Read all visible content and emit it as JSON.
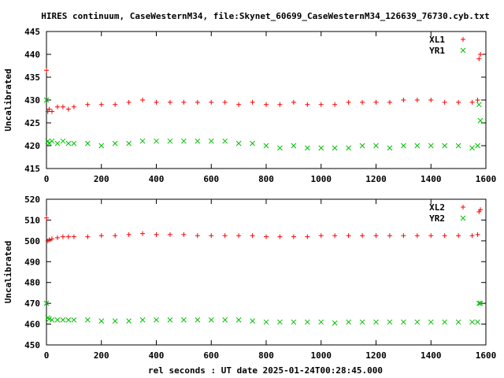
{
  "chart_data": {
    "title": "HIRES continuum, CaseWesternM34, file:Skynet_60699_CaseWesternM34_126639_76730.cyb.txt",
    "xlabel": "rel seconds : UT date 2025-01-24T00:28:45.000",
    "panels": [
      {
        "type": "scatter",
        "ylabel": "Uncalibrated",
        "xlim": [
          0,
          1600
        ],
        "ylim": [
          415,
          445
        ],
        "xticks": [
          0,
          200,
          400,
          600,
          800,
          1000,
          1200,
          1400,
          1600
        ],
        "yticks": [
          415,
          420,
          425,
          430,
          435,
          440,
          445
        ],
        "series": [
          {
            "name": "XL1",
            "color": "#ff0000",
            "marker": "plus",
            "x": [
              0,
              5,
              10,
              20,
              40,
              60,
              80,
              100,
              150,
              200,
              250,
              300,
              350,
              400,
              450,
              500,
              550,
              600,
              650,
              700,
              750,
              800,
              850,
              900,
              950,
              1000,
              1050,
              1100,
              1150,
              1200,
              1250,
              1300,
              1350,
              1400,
              1450,
              1500,
              1550,
              1570,
              1575,
              1580
            ],
            "y": [
              436.5,
              427.5,
              428,
              427.5,
              428.5,
              428.5,
              428,
              428.5,
              429,
              429,
              429,
              429.5,
              430,
              429.5,
              429.5,
              429.5,
              429.5,
              429.5,
              429.5,
              429,
              429.5,
              429,
              429,
              429.5,
              429,
              429,
              429,
              429.5,
              429.5,
              429.5,
              429.5,
              430,
              430,
              430,
              429.5,
              429.5,
              429.5,
              430,
              439,
              440
            ]
          },
          {
            "name": "YR1",
            "color": "#00c000",
            "marker": "cross",
            "x": [
              0,
              5,
              10,
              20,
              40,
              60,
              80,
              100,
              150,
              200,
              250,
              300,
              350,
              400,
              450,
              500,
              550,
              600,
              650,
              700,
              750,
              800,
              850,
              900,
              950,
              1000,
              1050,
              1100,
              1150,
              1200,
              1250,
              1300,
              1350,
              1400,
              1450,
              1500,
              1550,
              1570,
              1575,
              1580
            ],
            "y": [
              430,
              421,
              420.5,
              421,
              420.5,
              421,
              420.5,
              420.5,
              420.5,
              420,
              420.5,
              420.5,
              421,
              421,
              421,
              421,
              421,
              421,
              421,
              420.5,
              420.5,
              420,
              419.5,
              420,
              419.5,
              419.5,
              419.5,
              419.5,
              420,
              420,
              419.5,
              420,
              420,
              420,
              420,
              420,
              419.5,
              420,
              429,
              425.5
            ]
          }
        ]
      },
      {
        "type": "scatter",
        "ylabel": "Uncalibrated",
        "xlim": [
          0,
          1600
        ],
        "ylim": [
          450,
          520
        ],
        "xticks": [
          0,
          200,
          400,
          600,
          800,
          1000,
          1200,
          1400,
          1600
        ],
        "yticks": [
          450,
          460,
          470,
          480,
          490,
          500,
          510,
          520
        ],
        "series": [
          {
            "name": "XL2",
            "color": "#ff0000",
            "marker": "plus",
            "x": [
              0,
              5,
              10,
              20,
              40,
              60,
              80,
              100,
              150,
              200,
              250,
              300,
              350,
              400,
              450,
              500,
              550,
              600,
              650,
              700,
              750,
              800,
              850,
              900,
              950,
              1000,
              1050,
              1100,
              1150,
              1200,
              1250,
              1300,
              1350,
              1400,
              1450,
              1500,
              1550,
              1570,
              1575,
              1580
            ],
            "y": [
              511,
              500,
              500.5,
              501,
              501.5,
              502,
              502,
              502,
              502,
              502.5,
              502.5,
              503,
              503.5,
              503,
              503,
              503,
              502.5,
              502.5,
              502.5,
              502.5,
              502.5,
              502,
              502,
              502,
              502,
              502.5,
              502.5,
              502.5,
              502.5,
              502.5,
              502.5,
              502.5,
              502.5,
              502.5,
              502.5,
              502.5,
              502.5,
              503,
              514,
              515
            ]
          },
          {
            "name": "YR2",
            "color": "#00c000",
            "marker": "cross",
            "x": [
              0,
              5,
              10,
              20,
              40,
              60,
              80,
              100,
              150,
              200,
              250,
              300,
              350,
              400,
              450,
              500,
              550,
              600,
              650,
              700,
              750,
              800,
              850,
              900,
              950,
              1000,
              1050,
              1100,
              1150,
              1200,
              1250,
              1300,
              1350,
              1400,
              1450,
              1500,
              1550,
              1570,
              1575,
              1580
            ],
            "y": [
              470,
              463,
              462.5,
              462,
              462,
              462,
              462,
              462,
              462,
              461.5,
              461.5,
              461.5,
              462,
              462,
              462,
              462,
              462,
              462,
              462,
              462,
              461.5,
              461,
              461,
              461,
              461,
              461,
              460.5,
              461,
              461,
              461,
              461,
              461,
              461,
              461,
              461,
              461,
              461,
              461,
              470,
              470
            ]
          }
        ]
      }
    ]
  }
}
